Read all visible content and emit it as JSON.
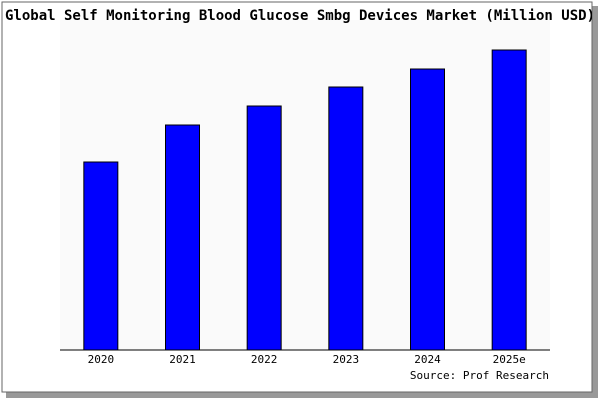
{
  "chart_data": {
    "type": "bar",
    "title": "Global Self Monitoring Blood Glucose Smbg Devices Market (Million USD)",
    "categories": [
      "2020",
      "2021",
      "2022",
      "2023",
      "2024",
      "2025e"
    ],
    "values": [
      188,
      225,
      244,
      263,
      281,
      300
    ],
    "color": "#0000ff",
    "ylim": [
      0,
      300
    ],
    "source": "Source: Prof Research"
  }
}
